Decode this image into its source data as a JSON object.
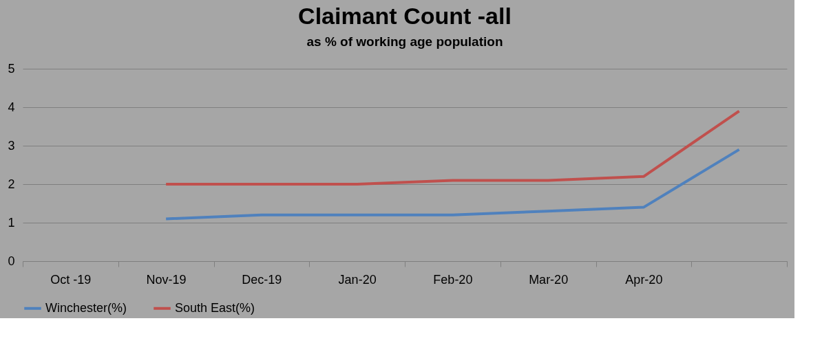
{
  "chart_data": {
    "type": "line",
    "title": "Claimant Count -all",
    "subtitle": "as % of working age population",
    "categories": [
      "Oct -19",
      "Nov-19",
      "Dec-19",
      "Jan-20",
      "Feb-20",
      "Mar-20",
      "Apr-20",
      null
    ],
    "series": [
      {
        "name": "Winchester(%)",
        "color": "#4f81bd",
        "values": [
          null,
          1.1,
          1.2,
          1.2,
          1.2,
          1.3,
          1.4,
          2.9
        ]
      },
      {
        "name": "South East(%)",
        "color": "#c0504d",
        "values": [
          null,
          2.0,
          2.0,
          2.0,
          2.1,
          2.1,
          2.2,
          3.9
        ]
      }
    ],
    "ylim": [
      0,
      5
    ],
    "yticks": [
      0,
      1,
      2,
      3,
      4,
      5
    ],
    "grid": "y",
    "legend": "bottom",
    "marker": "none",
    "line_style": "solid"
  }
}
